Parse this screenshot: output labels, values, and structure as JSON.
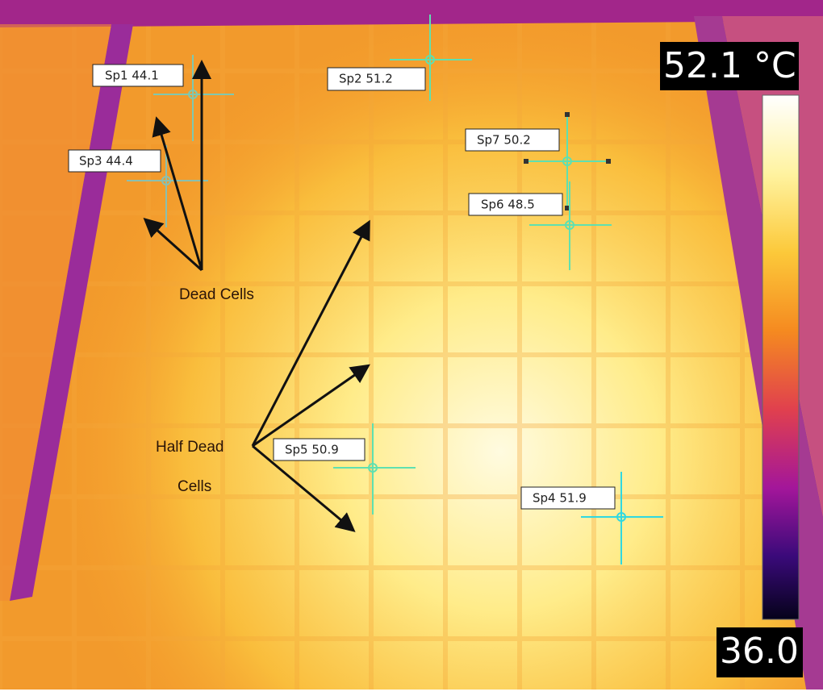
{
  "scale": {
    "max_label": "52.1 °C",
    "min_label": "36.0"
  },
  "spots": [
    {
      "label": "Sp1 44.1"
    },
    {
      "label": "Sp2 51.2"
    },
    {
      "label": "Sp3 44.4"
    },
    {
      "label": "Sp7 50.2"
    },
    {
      "label": "Sp6 48.5"
    },
    {
      "label": "Sp5 50.9"
    },
    {
      "label": "Sp4 51.9"
    }
  ],
  "annotations": {
    "dead_cells": "Dead Cells",
    "half_dead_line1": "Half Dead",
    "half_dead_line2": "Cells"
  }
}
